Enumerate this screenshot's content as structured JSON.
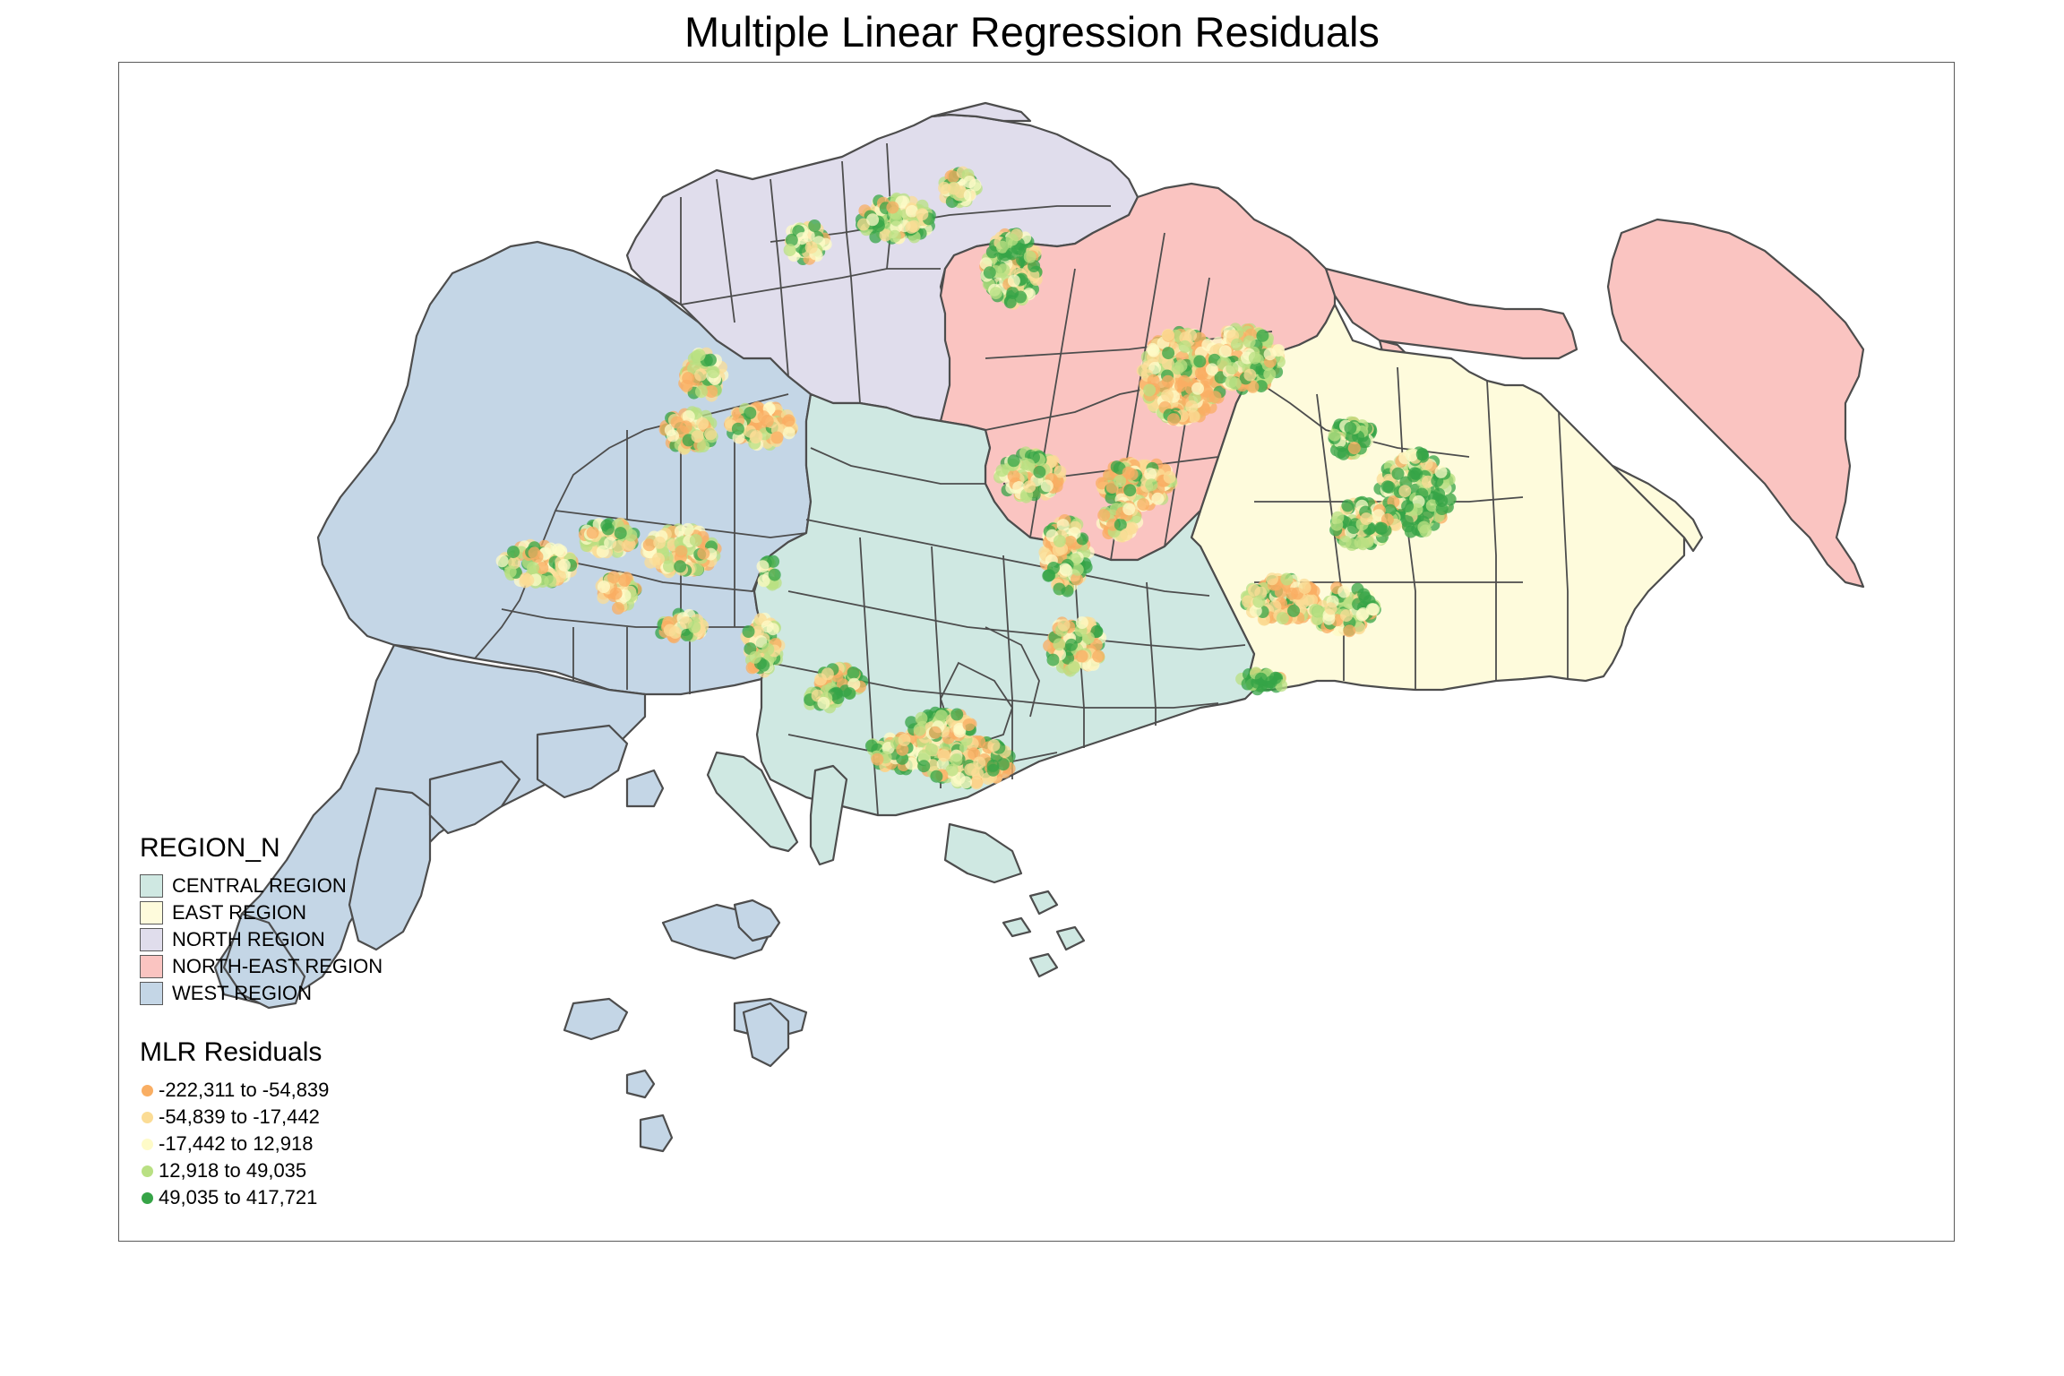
{
  "title": "Multiple Linear Regression Residuals",
  "region_legend": {
    "title": "REGION_N",
    "items": [
      {
        "label": "CENTRAL REGION",
        "color": "#cfe8e2"
      },
      {
        "label": "EAST REGION",
        "color": "#fefbdc"
      },
      {
        "label": "NORTH REGION",
        "color": "#e0ddec"
      },
      {
        "label": "NORTH-EAST REGION",
        "color": "#fac4c1"
      },
      {
        "label": "WEST REGION",
        "color": "#c4d6e6"
      }
    ]
  },
  "residual_legend": {
    "title": "MLR Residuals",
    "items": [
      {
        "label": "-222,311 to -54,839",
        "color": "#f9ae63"
      },
      {
        "label": "-54,839 to -17,442",
        "color": "#fbdc95"
      },
      {
        "label": "-17,442 to 12,918",
        "color": "#fefbc8"
      },
      {
        "label": "12,918 to 49,035",
        "color": "#b9e083"
      },
      {
        "label": "49,035 to 417,721",
        "color": "#36a447"
      }
    ]
  }
}
